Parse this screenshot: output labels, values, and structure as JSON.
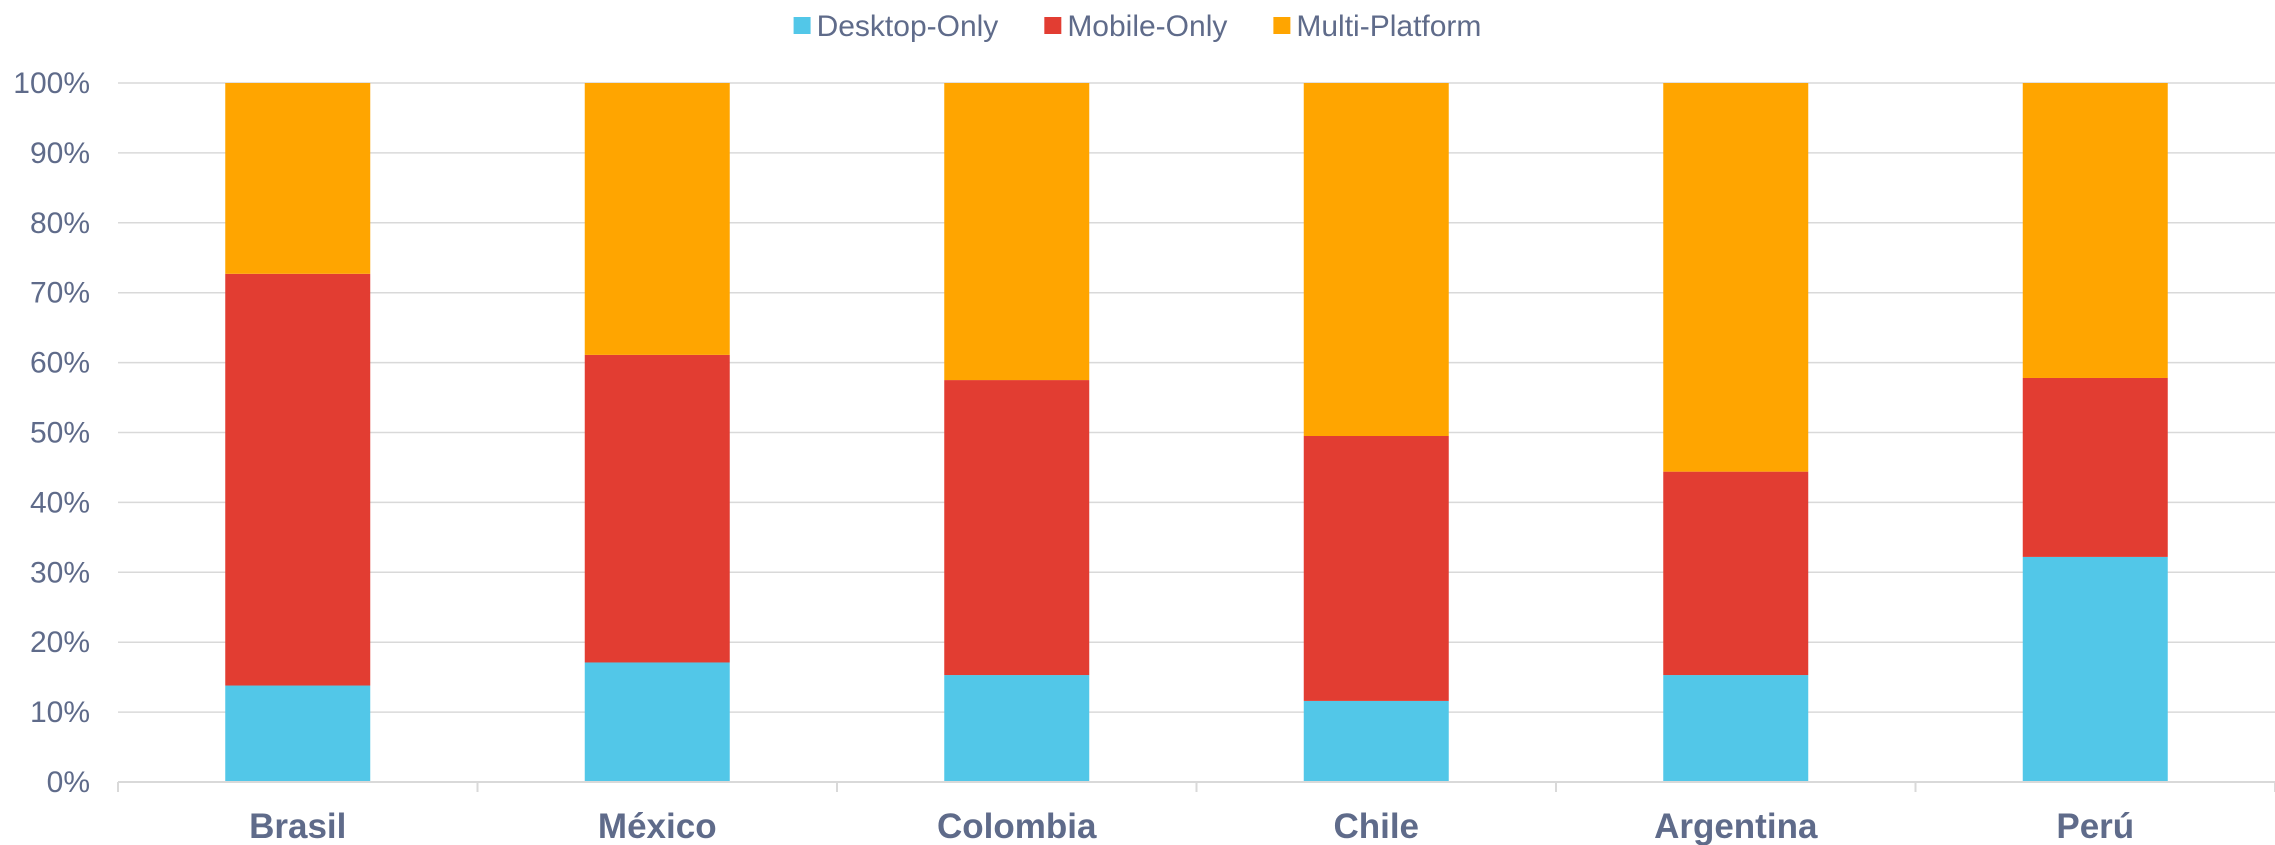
{
  "chart_data": {
    "type": "bar",
    "stacked": true,
    "categories": [
      "Brasil",
      "México",
      "Colombia",
      "Chile",
      "Argentina",
      "Perú"
    ],
    "series": [
      {
        "name": "Desktop-Only",
        "color": "#52c7e8",
        "values": [
          13.8,
          17.1,
          15.3,
          11.6,
          15.3,
          32.2
        ]
      },
      {
        "name": "Mobile-Only",
        "color": "#e23d32",
        "values": [
          58.9,
          44.0,
          42.2,
          37.9,
          29.1,
          25.6
        ]
      },
      {
        "name": "Multi-Platform",
        "color": "#ffa500",
        "values": [
          27.3,
          38.9,
          42.5,
          50.5,
          55.6,
          42.2
        ]
      }
    ],
    "ylim": [
      0,
      100
    ],
    "yticks": [
      "0%",
      "10%",
      "20%",
      "30%",
      "40%",
      "50%",
      "60%",
      "70%",
      "80%",
      "90%",
      "100%"
    ],
    "grid": true,
    "legend": "top-center"
  }
}
